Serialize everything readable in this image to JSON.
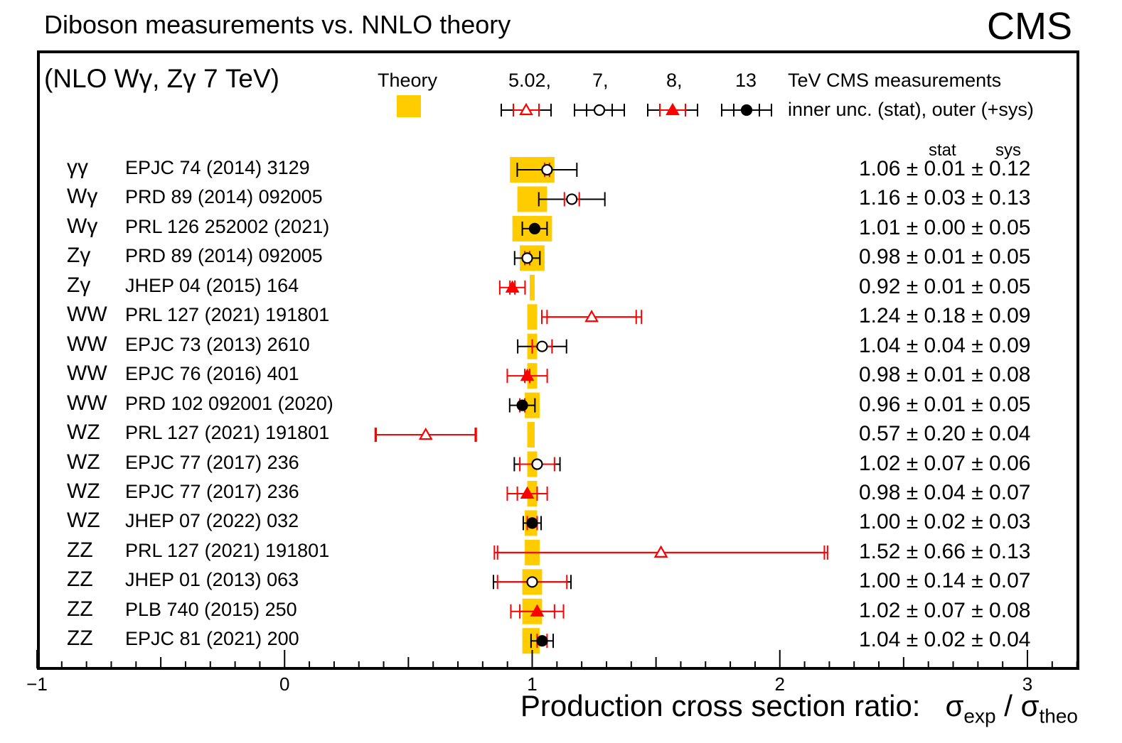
{
  "header": {
    "title": "Diboson measurements vs. NNLO theory",
    "experiment": "CMS",
    "nlo_note": "(NLO Wγ, Zγ 7 TeV)"
  },
  "legend": {
    "theory_label": "Theory",
    "theory_color": "#ffcc00",
    "energies": [
      "5.02,",
      "7,",
      "8,",
      "13"
    ],
    "energy_suffix": "TeV CMS measurements",
    "unc_desc": "inner unc. (stat), outer (+sys)",
    "markers": [
      {
        "energy": "5.02",
        "shape": "open-triangle",
        "color": "#ff0000"
      },
      {
        "energy": "7",
        "shape": "open-circle",
        "color": "#000000"
      },
      {
        "energy": "8",
        "shape": "filled-triangle",
        "color": "#ff0000"
      },
      {
        "energy": "13",
        "shape": "filled-circle",
        "color": "#000000"
      }
    ]
  },
  "columns": {
    "stat": "stat",
    "sys": "sys"
  },
  "chart_data": {
    "type": "scatter",
    "title": "Diboson measurements vs. NNLO theory",
    "xlabel": "Production cross section ratio:",
    "xlabel_math": {
      "sigma": "σ",
      "exp": "exp",
      "theo": "theo",
      "slash": "/"
    },
    "xlim": [
      -1,
      3.2
    ],
    "xticks": [
      -1,
      0,
      1,
      2,
      3
    ],
    "xtick_labels": [
      "−1",
      "0",
      "1",
      "2",
      "3"
    ],
    "rows": [
      {
        "process": "γγ",
        "ref": "EPJC 74 (2014) 3129",
        "energy": "7",
        "value": 1.06,
        "stat": 0.01,
        "sys": 0.12,
        "theory_band": [
          0.91,
          1.09
        ],
        "text": "1.06 ± 0.01 ± 0.12"
      },
      {
        "process": "Wγ",
        "ref": "PRD 89 (2014) 092005",
        "energy": "7",
        "value": 1.16,
        "stat": 0.03,
        "sys": 0.13,
        "theory_band": [
          0.94,
          1.06
        ],
        "text": "1.16 ± 0.03 ± 0.13"
      },
      {
        "process": "Wγ",
        "ref": "PRL 126 252002 (2021)",
        "energy": "13",
        "value": 1.01,
        "stat": 0.0,
        "sys": 0.05,
        "theory_band": [
          0.92,
          1.08
        ],
        "text": "1.01 ± 0.00 ± 0.05"
      },
      {
        "process": "Zγ",
        "ref": "PRD 89 (2014) 092005",
        "energy": "7",
        "value": 0.98,
        "stat": 0.01,
        "sys": 0.05,
        "theory_band": [
          0.95,
          1.05
        ],
        "text": "0.98 ± 0.01 ± 0.05"
      },
      {
        "process": "Zγ",
        "ref": "JHEP 04 (2015) 164",
        "energy": "8",
        "value": 0.92,
        "stat": 0.01,
        "sys": 0.05,
        "theory_band": [
          0.99,
          1.01
        ],
        "text": "0.92 ± 0.01 ± 0.05"
      },
      {
        "process": "WW",
        "ref": "PRL 127 (2021) 191801",
        "energy": "5.02",
        "value": 1.24,
        "stat": 0.18,
        "sys": 0.09,
        "theory_band": [
          0.98,
          1.02
        ],
        "text": "1.24 ± 0.18 ± 0.09"
      },
      {
        "process": "WW",
        "ref": "EPJC 73 (2013) 2610",
        "energy": "7",
        "value": 1.04,
        "stat": 0.04,
        "sys": 0.09,
        "theory_band": [
          0.98,
          1.02
        ],
        "text": "1.04 ± 0.04 ± 0.09"
      },
      {
        "process": "WW",
        "ref": "EPJC 76 (2016) 401",
        "energy": "8",
        "value": 0.98,
        "stat": 0.01,
        "sys": 0.08,
        "theory_band": [
          0.98,
          1.02
        ],
        "text": "0.98 ± 0.01 ± 0.08"
      },
      {
        "process": "WW",
        "ref": "PRD 102 092001 (2020)",
        "energy": "13",
        "value": 0.96,
        "stat": 0.01,
        "sys": 0.05,
        "theory_band": [
          0.97,
          1.03
        ],
        "text": "0.96 ± 0.01 ± 0.05"
      },
      {
        "process": "WZ",
        "ref": "PRL 127 (2021) 191801",
        "energy": "5.02",
        "value": 0.57,
        "stat": 0.2,
        "sys": 0.04,
        "theory_band": [
          0.98,
          1.01
        ],
        "text": "0.57 ± 0.20 ± 0.04"
      },
      {
        "process": "WZ",
        "ref": "EPJC 77 (2017) 236",
        "energy": "7",
        "value": 1.02,
        "stat": 0.07,
        "sys": 0.06,
        "theory_band": [
          0.98,
          1.02
        ],
        "text": "1.02 ± 0.07 ± 0.06"
      },
      {
        "process": "WZ",
        "ref": "EPJC 77 (2017) 236",
        "energy": "8",
        "value": 0.98,
        "stat": 0.04,
        "sys": 0.07,
        "theory_band": [
          0.98,
          1.02
        ],
        "text": "0.98 ± 0.04 ± 0.07"
      },
      {
        "process": "WZ",
        "ref": "JHEP 07 (2022) 032",
        "energy": "13",
        "value": 1.0,
        "stat": 0.02,
        "sys": 0.03,
        "theory_band": [
          0.97,
          1.02
        ],
        "text": "1.00 ± 0.02 ± 0.03"
      },
      {
        "process": "ZZ",
        "ref": "PRL 127 (2021) 191801",
        "energy": "5.02",
        "value": 1.52,
        "stat": 0.66,
        "sys": 0.13,
        "theory_band": [
          0.97,
          1.03
        ],
        "text": "1.52 ± 0.66 ± 0.13"
      },
      {
        "process": "ZZ",
        "ref": "JHEP 01 (2013) 063",
        "energy": "7",
        "value": 1.0,
        "stat": 0.14,
        "sys": 0.07,
        "theory_band": [
          0.96,
          1.04
        ],
        "text": "1.00 ± 0.14 ± 0.07"
      },
      {
        "process": "ZZ",
        "ref": "PLB 740 (2015) 250",
        "energy": "8",
        "value": 1.02,
        "stat": 0.07,
        "sys": 0.08,
        "theory_band": [
          0.96,
          1.04
        ],
        "text": "1.02 ± 0.07 ± 0.08"
      },
      {
        "process": "ZZ",
        "ref": "EPJC 81 (2021) 200",
        "energy": "13",
        "value": 1.04,
        "stat": 0.02,
        "sys": 0.04,
        "theory_band": [
          0.96,
          1.03
        ],
        "text": "1.04 ± 0.02 ± 0.04"
      }
    ]
  }
}
